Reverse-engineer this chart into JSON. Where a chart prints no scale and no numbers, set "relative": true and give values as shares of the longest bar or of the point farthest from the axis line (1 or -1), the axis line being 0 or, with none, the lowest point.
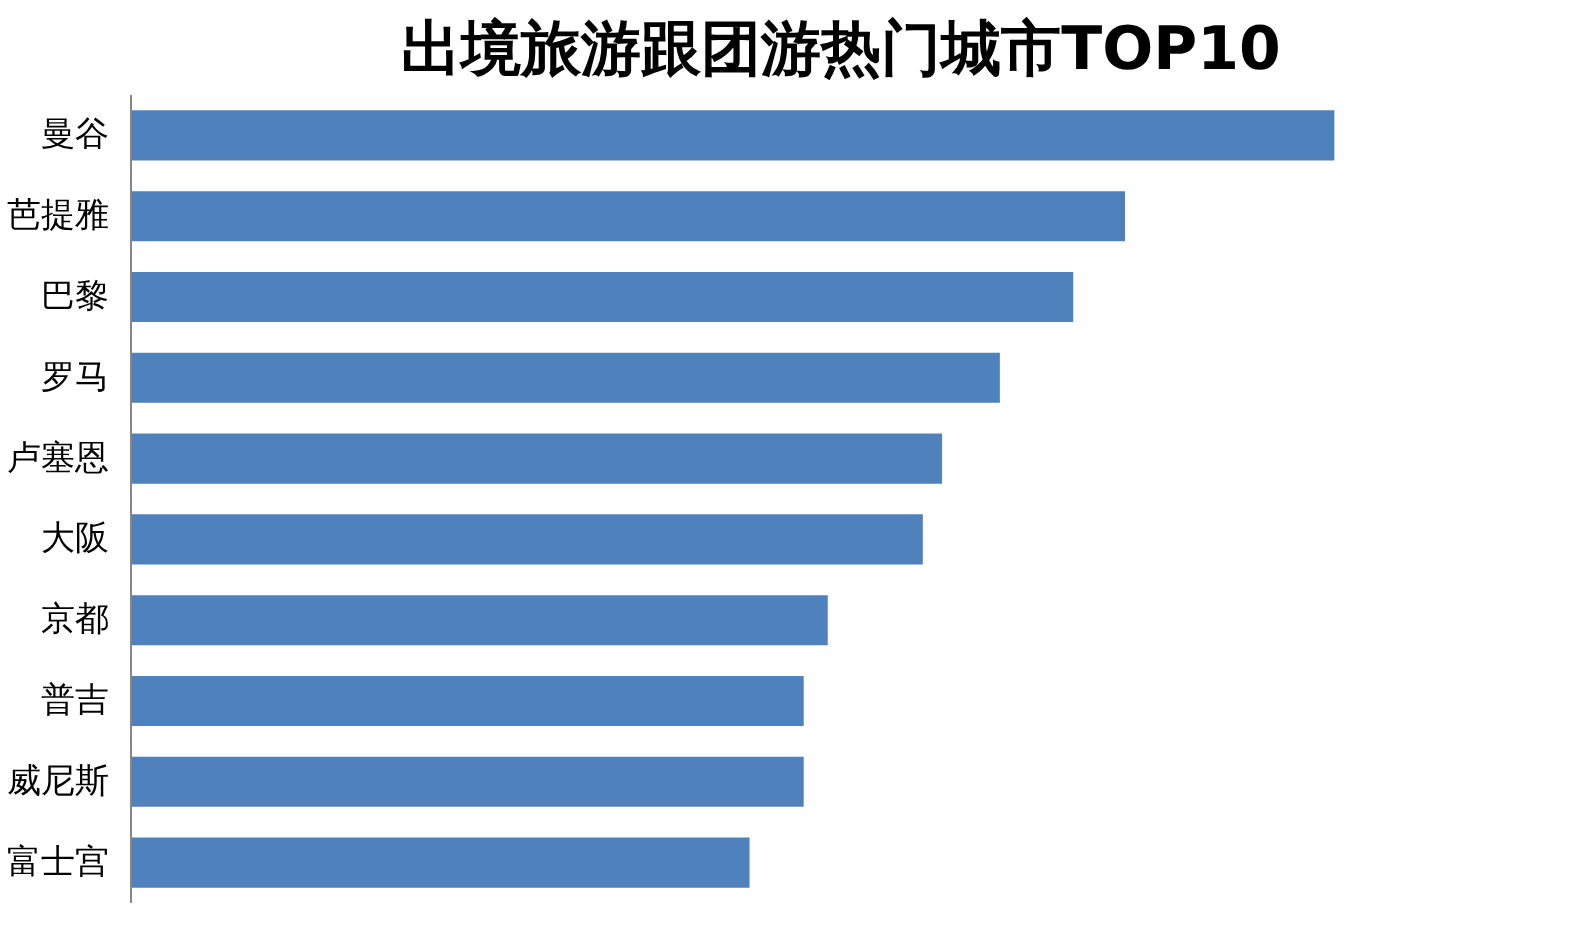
{
  "chart_data": {
    "type": "bar",
    "orientation": "horizontal",
    "relative": true,
    "title": "出境旅游跟团游热门城市TOP10",
    "categories": [
      "曼谷",
      "芭提雅",
      "巴黎",
      "罗马",
      "卢塞恩",
      "大阪",
      "京都",
      "普吉",
      "威尼斯",
      "富士宫"
    ],
    "values": [
      1,
      0.826,
      0.783,
      0.722,
      0.674,
      0.658,
      0.579,
      0.559,
      0.559,
      0.514
    ],
    "color": "#4f81bd",
    "grid": false
  }
}
